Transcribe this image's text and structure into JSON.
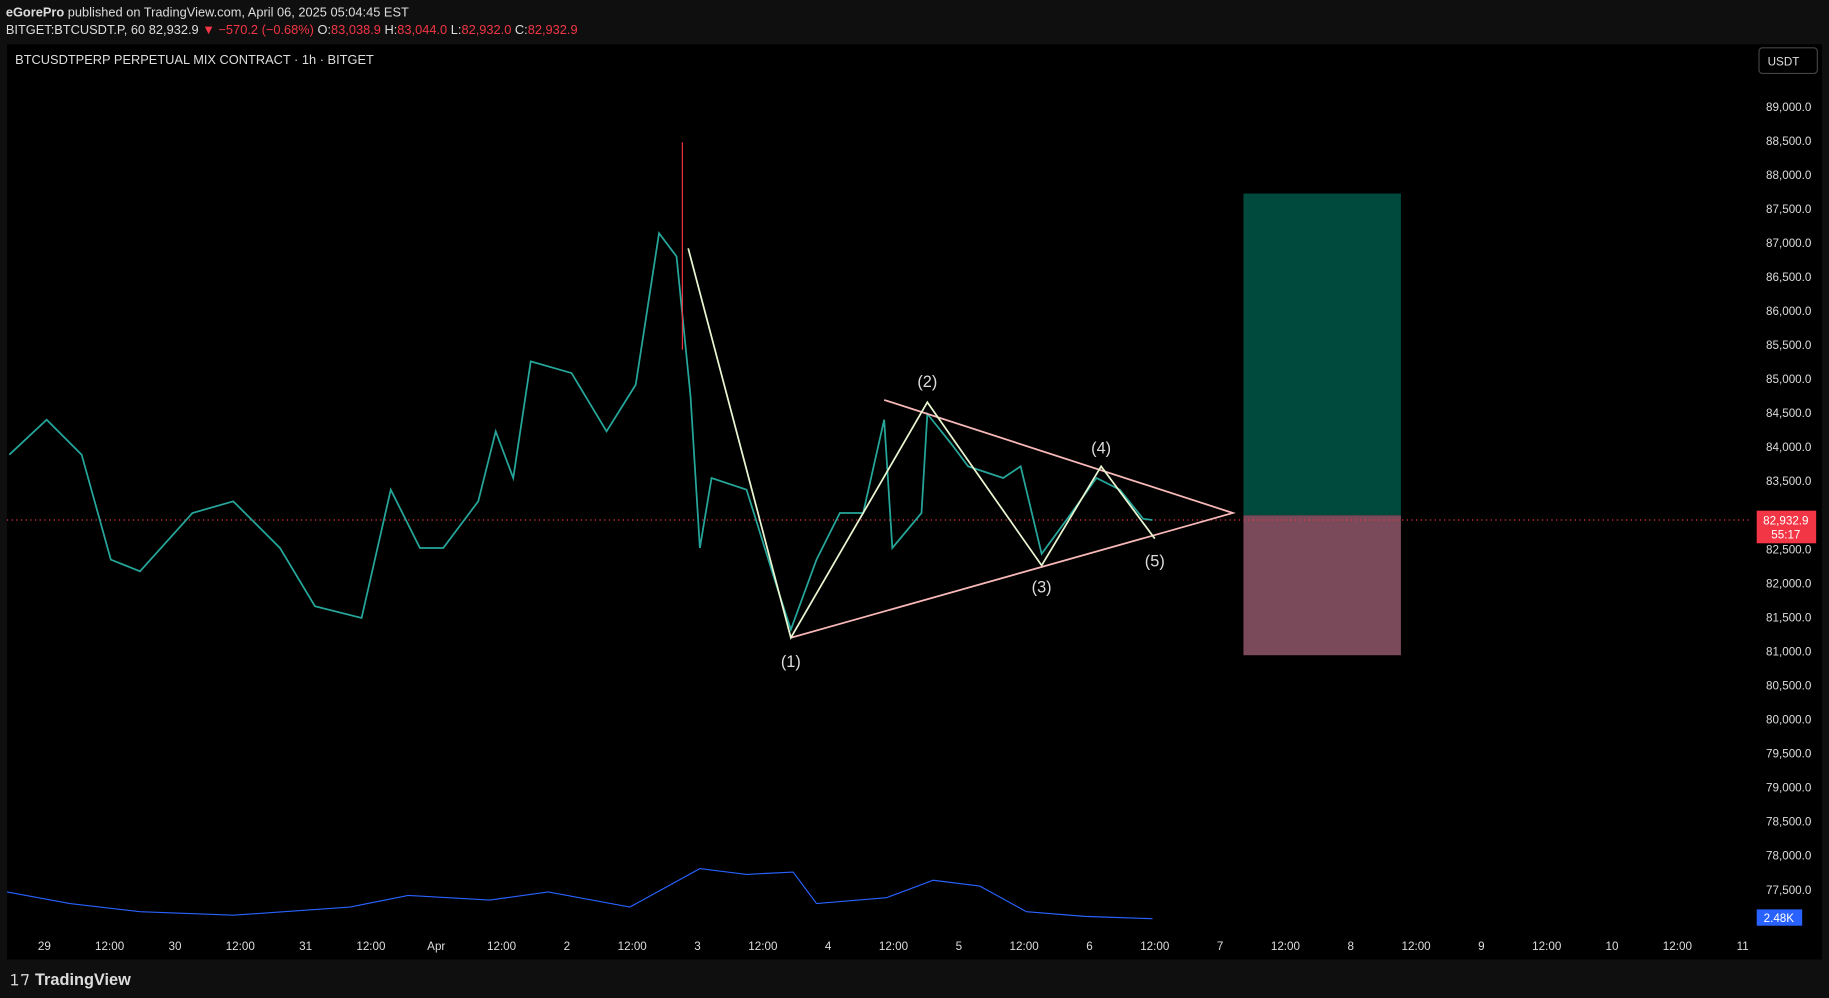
{
  "header": {
    "publisher": "eGorePro",
    "published": "published on TradingView.com, April 06, 2025 05:04:45 EST",
    "symbol": "BITGET:BTCUSDT.P, 60",
    "last": "82,932.9",
    "change": "▼ −570.2 (−0.68%)",
    "open_label": "O:",
    "open": "83,038.9",
    "high_label": "H:",
    "high": "83,044.0",
    "low_label": "L:",
    "low": "82,932.0",
    "close_label": "C:",
    "close": "82,932.9"
  },
  "chart": {
    "title": "BTCUSDTPERP PERPETUAL MIX CONTRACT · 1h · BITGET",
    "currency": "USDT",
    "price_ticks": [
      "89,000.0",
      "88,500.0",
      "88,000.0",
      "87,500.0",
      "87,000.0",
      "86,500.0",
      "86,000.0",
      "85,500.0",
      "85,000.0",
      "84,500.0",
      "84,000.0",
      "83,500.0",
      "83,000.0",
      "82,500.0",
      "82,000.0",
      "81,500.0",
      "81,000.0",
      "80,500.0",
      "80,000.0",
      "79,500.0",
      "79,000.0",
      "78,500.0",
      "78,000.0",
      "77,500.0"
    ],
    "time_labels": [
      "29",
      "12:00",
      "30",
      "12:00",
      "31",
      "12:00",
      "Apr",
      "12:00",
      "2",
      "12:00",
      "3",
      "12:00",
      "4",
      "12:00",
      "5",
      "12:00",
      "6",
      "12:00",
      "7",
      "12:00",
      "8",
      "12:00",
      "9",
      "12:00",
      "10",
      "12:00",
      "11"
    ],
    "wave_labels": [
      "(1)",
      "(2)",
      "(3)",
      "(4)",
      "(5)"
    ],
    "price_tag": "82,932.9",
    "countdown": "55:17",
    "volume_tag": "2.48K"
  },
  "footer": {
    "brand": "TradingView"
  }
}
